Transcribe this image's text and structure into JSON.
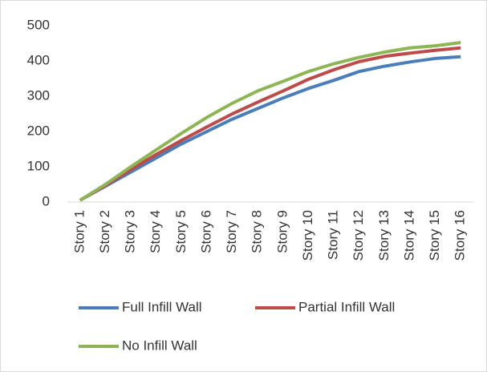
{
  "chart_data": {
    "type": "line",
    "categories": [
      "Story 1",
      "Story 2",
      "Story 3",
      "Story 4",
      "Story 5",
      "Story 6",
      "Story 7",
      "Story 8",
      "Story 9",
      "Story 10",
      "Story 11",
      "Story 12",
      "Story 13",
      "Story 14",
      "Story 15",
      "Story 16"
    ],
    "series": [
      {
        "name": "Full Infill Wall",
        "color": "#4a7ebb",
        "values": [
          5,
          45,
          85,
          125,
          165,
          200,
          235,
          265,
          295,
          322,
          345,
          370,
          385,
          397,
          407,
          412
        ]
      },
      {
        "name": "Partial Infill Wall",
        "color": "#be4b48",
        "values": [
          5,
          47,
          92,
          135,
          175,
          213,
          250,
          283,
          315,
          348,
          375,
          398,
          413,
          422,
          430,
          437
        ]
      },
      {
        "name": "No Infill Wall",
        "color": "#8db554",
        "values": [
          5,
          50,
          100,
          148,
          195,
          240,
          280,
          315,
          342,
          370,
          392,
          410,
          425,
          437,
          443,
          452
        ]
      }
    ],
    "ylim": [
      0,
      500
    ],
    "yticks": [
      0,
      100,
      200,
      300,
      400,
      500
    ],
    "grid": false,
    "legend": "bottom"
  }
}
